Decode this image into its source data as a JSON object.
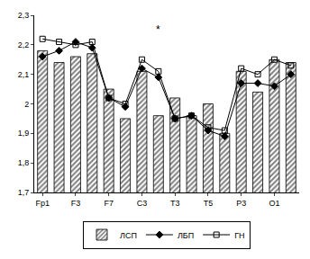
{
  "chart_data": {
    "type": "bar",
    "categories": [
      "Fp1",
      null,
      "F3",
      null,
      "F7",
      null,
      "C3",
      null,
      "T3",
      null,
      "T5",
      null,
      "P3",
      null,
      "O1",
      null
    ],
    "series": [
      {
        "name": "ЛСП",
        "type": "bar",
        "color": "#808080",
        "marker": "hatch",
        "values": [
          2.18,
          2.14,
          2.16,
          2.17,
          2.05,
          1.95,
          2.11,
          1.96,
          2.02,
          1.96,
          2.0,
          1.9,
          2.11,
          2.04,
          2.15,
          2.14
        ]
      },
      {
        "name": "ЛБП",
        "type": "line",
        "color": "#000000",
        "marker": "diamond",
        "line_style": "solid",
        "values": [
          2.16,
          2.18,
          2.21,
          2.19,
          2.02,
          1.99,
          2.12,
          2.09,
          1.95,
          1.96,
          1.91,
          1.89,
          2.07,
          2.07,
          2.06,
          2.1
        ]
      },
      {
        "name": "ГН",
        "type": "line",
        "color": "#000000",
        "marker": "square-open",
        "line_style": "solid",
        "values": [
          2.22,
          2.21,
          2.2,
          2.21,
          2.02,
          2.0,
          2.15,
          2.11,
          1.95,
          1.96,
          1.92,
          1.91,
          2.12,
          2.1,
          2.15,
          2.13
        ]
      }
    ],
    "ylim": [
      1.7,
      2.3
    ],
    "yticks": [
      {
        "value": 1.7,
        "label": "1,7"
      },
      {
        "value": 1.8,
        "label": "1,8"
      },
      {
        "value": 1.9,
        "label": "1,9"
      },
      {
        "value": 2.0,
        "label": "2"
      },
      {
        "value": 2.1,
        "label": "2,1"
      },
      {
        "value": 2.2,
        "label": "2,2"
      },
      {
        "value": 2.3,
        "label": "2,3"
      }
    ],
    "annotations": [
      {
        "text": "*",
        "category_index": 7,
        "y": 2.25
      }
    ],
    "grid": false,
    "legend": "bottom"
  }
}
